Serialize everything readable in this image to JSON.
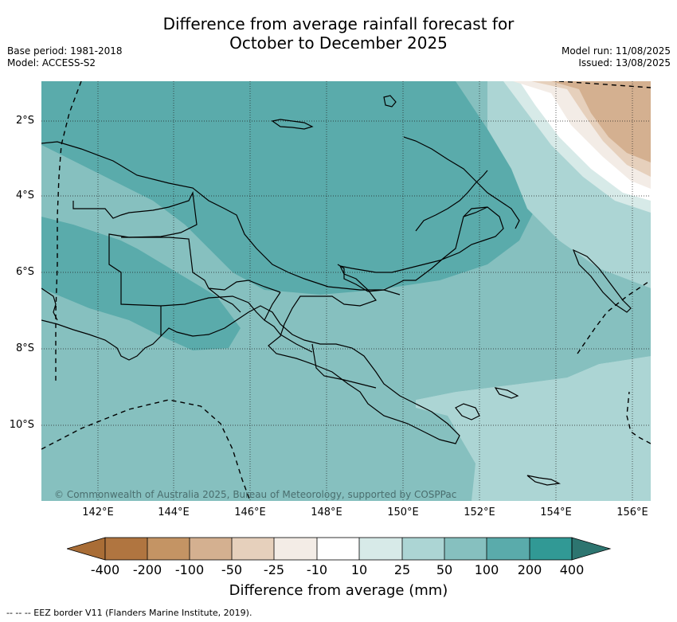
{
  "title_line1": "Difference from average rainfall forecast for",
  "title_line2": "October to December 2025",
  "base_period": "Base period: 1981-2018",
  "model": "Model: ACCESS-S2",
  "model_run": "Model run: 11/08/2025",
  "issued": "Issued: 13/08/2025",
  "lat_labels": [
    "2°S",
    "4°S",
    "6°S",
    "8°S",
    "10°S"
  ],
  "lon_labels": [
    "142°E",
    "144°E",
    "146°E",
    "148°E",
    "150°E",
    "152°E",
    "154°E",
    "156°E"
  ],
  "copyright": "© Commonwealth of Australia 2025, Bureau of Meteorology, supported by COSPPac",
  "colorbar": {
    "title": "Difference from average (mm)",
    "tick_labels": [
      "-400",
      "-200",
      "-100",
      "-50",
      "-25",
      "-10",
      "10",
      "25",
      "50",
      "100",
      "200",
      "400"
    ],
    "colors": [
      "#a96d36",
      "#b07540",
      "#c49464",
      "#d4b090",
      "#e6d0bc",
      "#f3ece6",
      "#ffffff",
      "#d7eae8",
      "#acd5d4",
      "#86c0bf",
      "#5aabab",
      "#319995",
      "#2d7570"
    ]
  },
  "footnote": "-- -- -- EEZ border V11 (Flanders Marine Institute, 2019)."
}
